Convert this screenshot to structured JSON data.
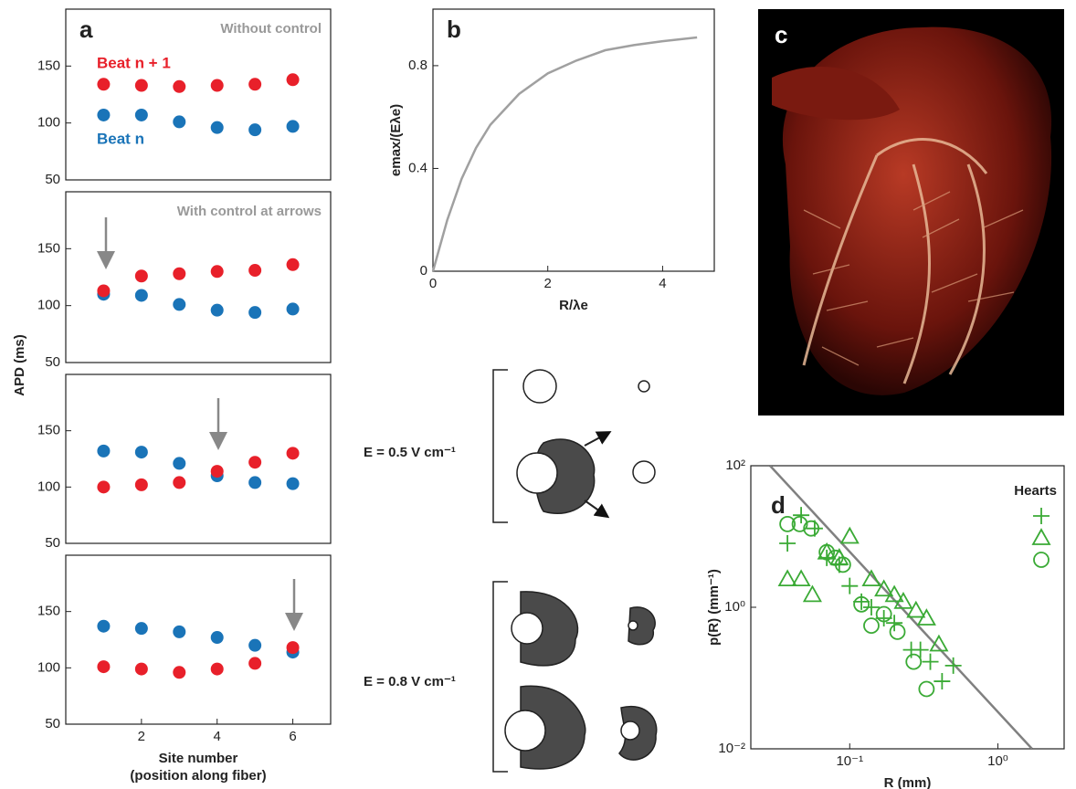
{
  "chart_data": [
    {
      "type": "scatter",
      "panel_label": "a",
      "annotation": "Without control",
      "xlim": [
        0,
        7
      ],
      "ylim": [
        50,
        200
      ],
      "yticks": [
        50,
        100,
        150
      ],
      "series": [
        {
          "name": "Beat n + 1",
          "color": "#e8202a",
          "x": [
            1,
            2,
            3,
            4,
            5,
            6
          ],
          "values": [
            134,
            133,
            132,
            133,
            134,
            138
          ]
        },
        {
          "name": "Beat n",
          "color": "#1a74b8",
          "x": [
            1,
            2,
            3,
            4,
            5,
            6
          ],
          "values": [
            107,
            107,
            101,
            96,
            94,
            97
          ]
        }
      ]
    },
    {
      "type": "scatter",
      "annotation": "With control at arrows",
      "xlim": [
        0,
        7
      ],
      "ylim": [
        50,
        200
      ],
      "yticks": [
        50,
        100,
        150
      ],
      "series": [
        {
          "color": "#1a74b8",
          "x": [
            1,
            2,
            3,
            4,
            5,
            6
          ],
          "values": [
            110,
            109,
            101,
            96,
            94,
            97
          ]
        },
        {
          "color": "#e8202a",
          "x": [
            1,
            2,
            3,
            4,
            5,
            6
          ],
          "values": [
            113,
            126,
            128,
            130,
            131,
            136
          ]
        }
      ]
    },
    {
      "type": "scatter",
      "xlim": [
        0,
        7
      ],
      "ylim": [
        50,
        200
      ],
      "yticks": [
        50,
        100,
        150
      ],
      "series": [
        {
          "color": "#1a74b8",
          "x": [
            1,
            2,
            3,
            4,
            5,
            6
          ],
          "values": [
            132,
            131,
            121,
            110,
            104,
            103
          ]
        },
        {
          "color": "#e8202a",
          "x": [
            1,
            2,
            3,
            4,
            5,
            6
          ],
          "values": [
            100,
            102,
            104,
            114,
            122,
            130
          ]
        }
      ]
    },
    {
      "type": "scatter",
      "y_label": "APD (ms)",
      "x_label": [
        "Site number",
        "(position along fiber)"
      ],
      "xlim": [
        0,
        7
      ],
      "xticks": [
        2,
        4,
        6
      ],
      "ylim": [
        50,
        200
      ],
      "yticks": [
        50,
        100,
        150
      ],
      "series": [
        {
          "color": "#1a74b8",
          "x": [
            1,
            2,
            3,
            4,
            5,
            6
          ],
          "values": [
            137,
            135,
            132,
            127,
            120,
            114
          ]
        },
        {
          "color": "#e8202a",
          "x": [
            1,
            2,
            3,
            4,
            5,
            6
          ],
          "values": [
            101,
            99,
            96,
            99,
            104,
            118
          ]
        }
      ]
    },
    {
      "type": "line",
      "panel_label": "b",
      "y_label": "emax/(Eλe)",
      "x_label": [
        "R/λe"
      ],
      "xlim": [
        0,
        4.9
      ],
      "xticks": [
        0,
        2,
        4
      ],
      "ylim": [
        0,
        1.02
      ],
      "yticks": [
        0,
        0.4,
        0.8
      ],
      "series": [
        {
          "color": "#a0a0a0",
          "x": [
            0,
            0.25,
            0.5,
            0.75,
            1,
            1.5,
            2,
            2.5,
            3,
            3.5,
            4,
            4.6
          ],
          "values": [
            0,
            0.2,
            0.36,
            0.48,
            0.57,
            0.69,
            0.77,
            0.82,
            0.86,
            0.88,
            0.895,
            0.91
          ]
        }
      ]
    },
    {
      "type": "scatter",
      "panel_label": "d",
      "legend_title": "Hearts",
      "log_scale": true,
      "y_label": "p(R) (mm⁻¹)",
      "x_label": [
        "R (mm)"
      ],
      "xlim": [
        0.0215,
        2.8
      ],
      "xticks": [
        {
          "value": 0.1,
          "label": "10⁻¹"
        },
        {
          "value": 1,
          "label": "10⁰"
        }
      ],
      "ylim": [
        0.01,
        100
      ],
      "yticks": [
        {
          "value": 0.01,
          "label": "10⁻²"
        },
        {
          "value": 1,
          "label": "10⁰"
        },
        {
          "value": 100,
          "label": "10²"
        }
      ],
      "series": [
        {
          "marker": "line",
          "color": "#808080",
          "x": [
            0.029,
            1.7
          ],
          "values": [
            100,
            0.01
          ]
        },
        {
          "marker": "plus",
          "color": "#3aaa35",
          "x": [
            0.038,
            0.047,
            0.058,
            0.07,
            0.085,
            0.1,
            0.12,
            0.14,
            0.17,
            0.2,
            0.26,
            0.3,
            0.35,
            0.42,
            0.5
          ],
          "values": [
            8,
            20,
            13,
            5,
            4,
            2,
            1.2,
            1,
            0.7,
            0.6,
            0.25,
            0.25,
            0.17,
            0.09,
            0.15
          ]
        },
        {
          "marker": "triangle",
          "color": "#3aaa35",
          "x": [
            0.038,
            0.047,
            0.056,
            0.07,
            0.085,
            0.1,
            0.14,
            0.17,
            0.2,
            0.23,
            0.28,
            0.33,
            0.4
          ],
          "values": [
            2.5,
            2.5,
            1.5,
            6,
            5,
            10,
            2.5,
            1.8,
            1.5,
            1.2,
            0.9,
            0.7,
            0.3
          ]
        },
        {
          "marker": "circle",
          "color": "#3aaa35",
          "x": [
            0.038,
            0.046,
            0.055,
            0.07,
            0.08,
            0.09,
            0.12,
            0.14,
            0.17,
            0.21,
            0.27,
            0.33
          ],
          "values": [
            15,
            15,
            13,
            6,
            5,
            4,
            1.1,
            0.55,
            0.8,
            0.45,
            0.17,
            0.07
          ]
        }
      ]
    }
  ],
  "panel_c": {
    "panel_label": "c"
  },
  "diagram": {
    "field_labels": [
      "E = 0.5 V cm⁻¹",
      "E = 0.8 V cm⁻¹"
    ]
  }
}
